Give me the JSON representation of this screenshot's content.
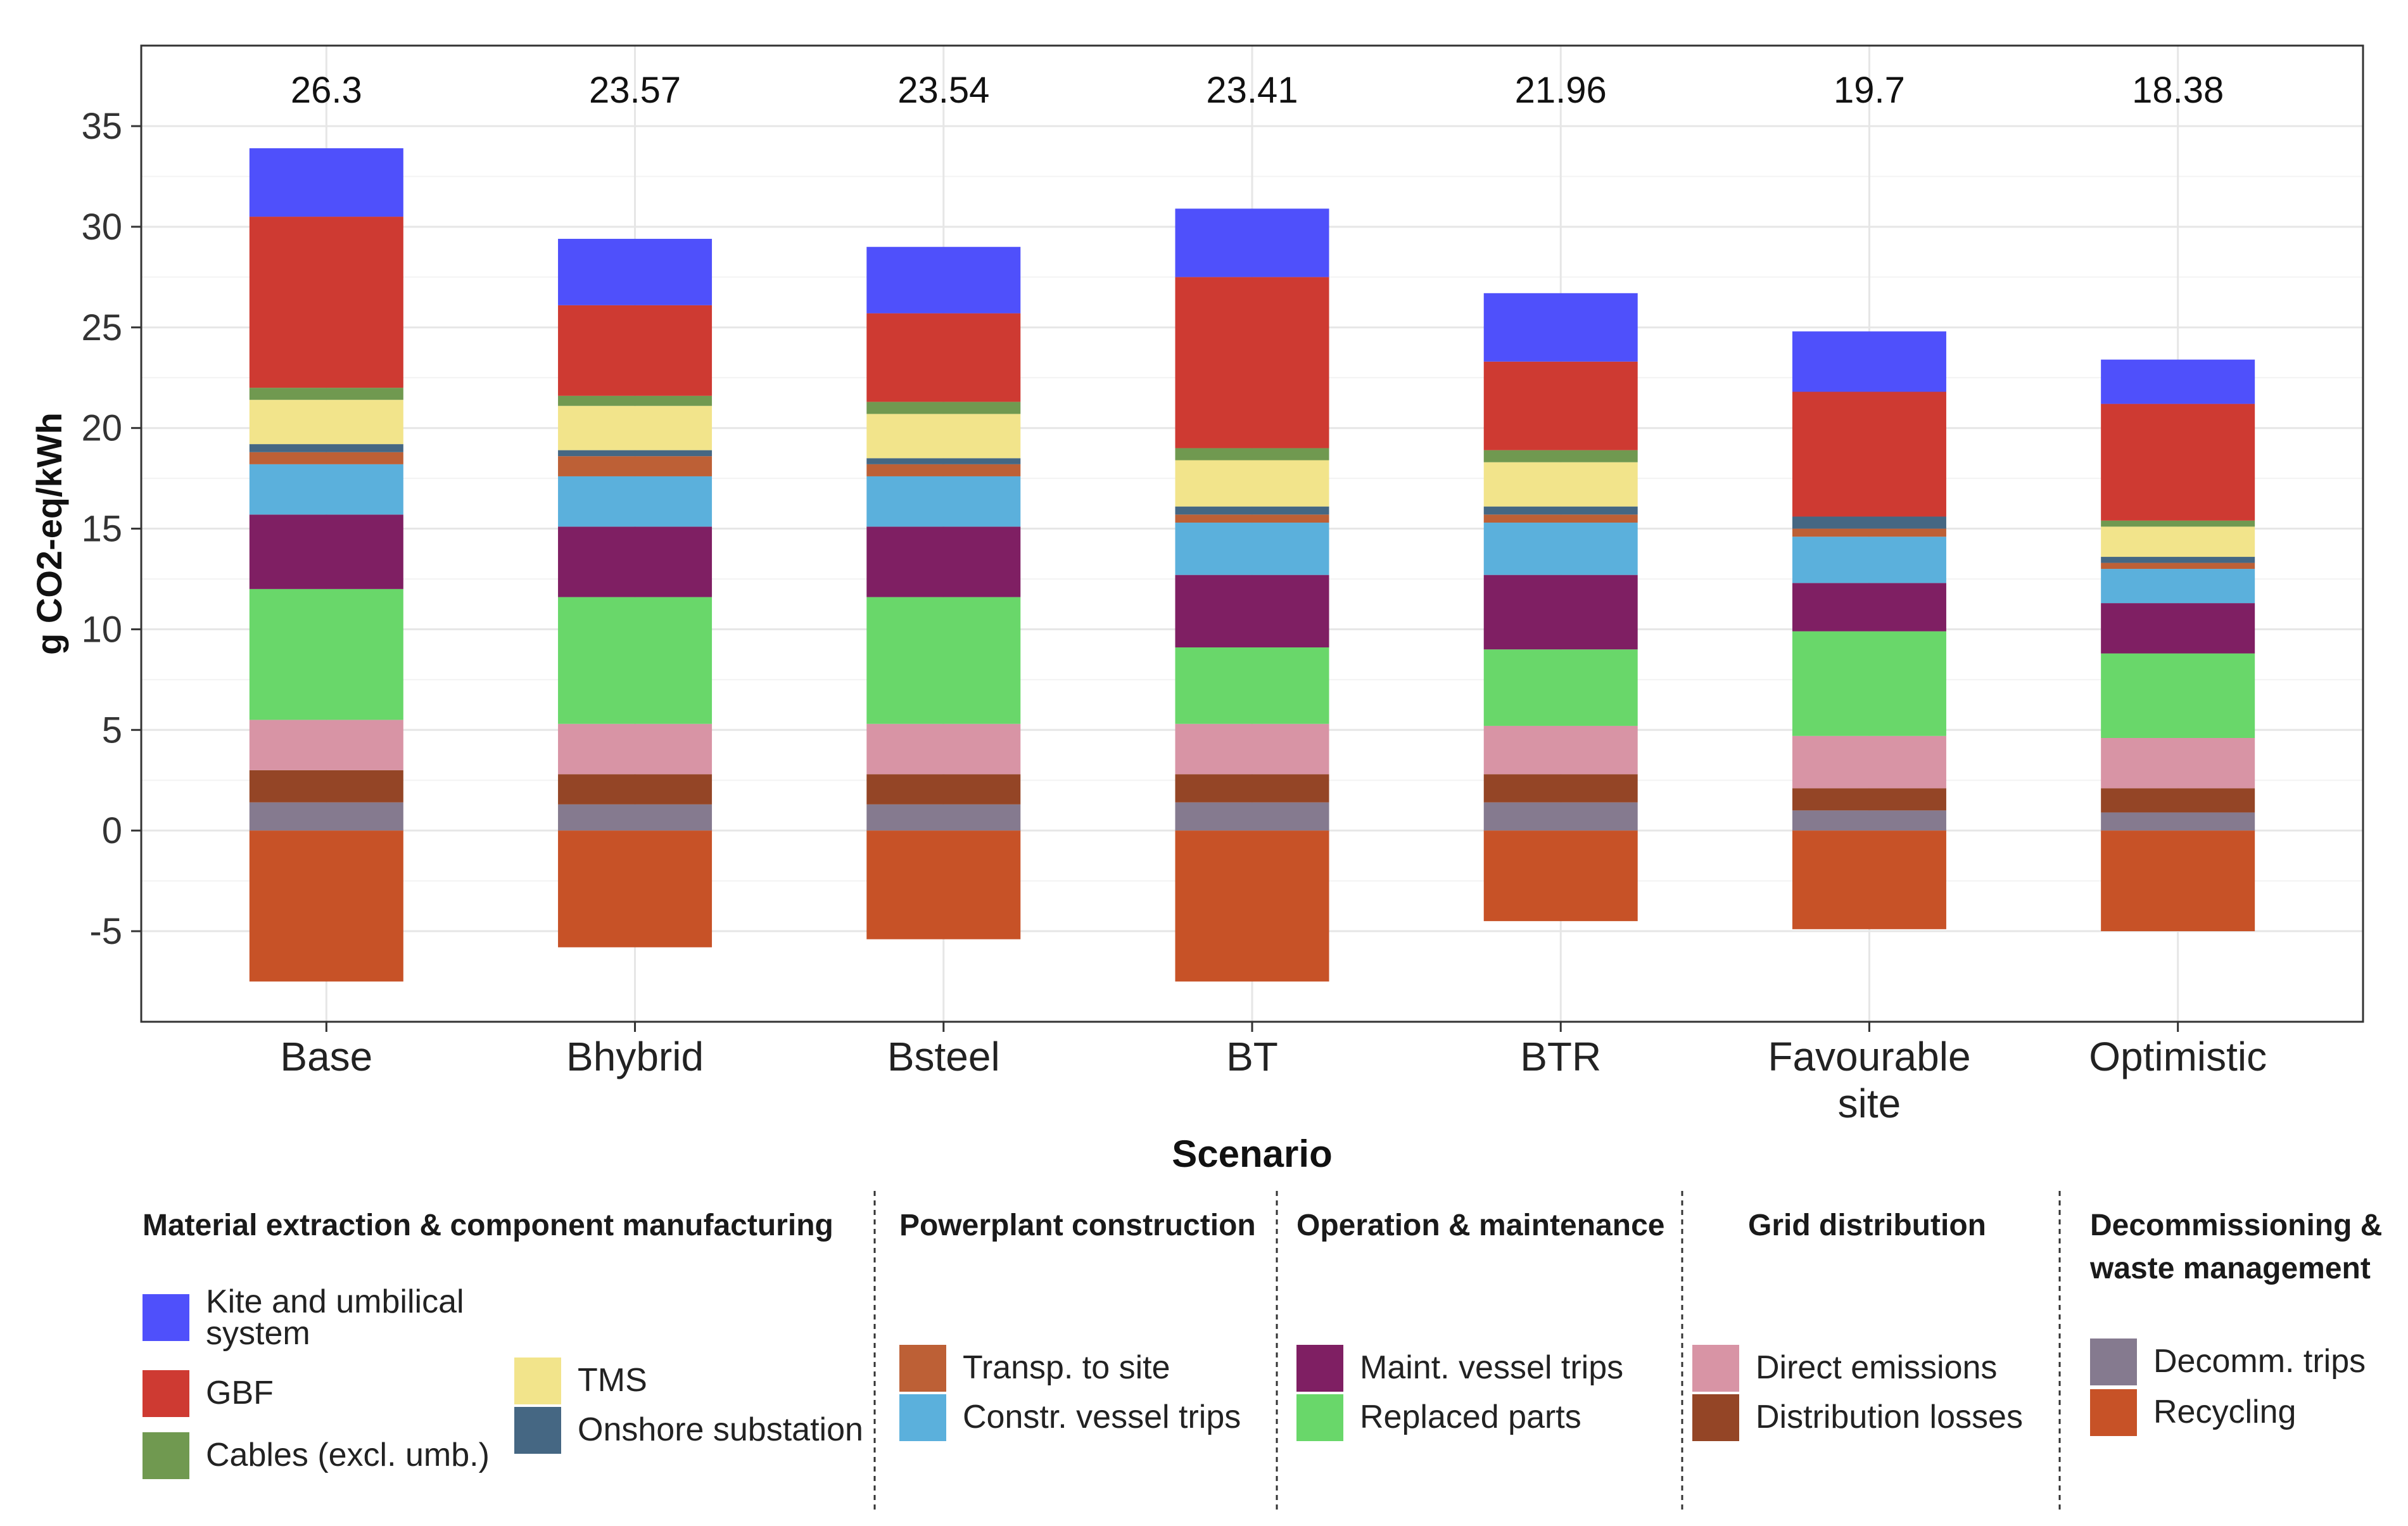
{
  "chart_data": {
    "type": "bar",
    "stacked": true,
    "title": "",
    "xlabel": "Scenario",
    "ylabel": "g CO2-eq/kWh",
    "ylim": [
      -9.5,
      39
    ],
    "yticks": [
      35,
      30,
      25,
      20,
      15,
      10,
      5,
      0,
      -5
    ],
    "ytick_labels": [
      "35",
      "30",
      "25",
      "20",
      "15",
      "10",
      "5",
      "0",
      "-5"
    ],
    "grid": true,
    "categories": [
      {
        "lines": [
          "Base"
        ]
      },
      {
        "lines": [
          "Bhybrid"
        ]
      },
      {
        "lines": [
          "Bsteel"
        ]
      },
      {
        "lines": [
          "BT"
        ]
      },
      {
        "lines": [
          "BTR"
        ]
      },
      {
        "lines": [
          "Favourable",
          "site"
        ]
      },
      {
        "lines": [
          "Optimistic"
        ]
      }
    ],
    "totals": [
      "26.3",
      "23.57",
      "23.54",
      "23.41",
      "21.96",
      "19.7",
      "18.38"
    ],
    "positive_series": [
      {
        "name": "Decomm. trips",
        "color": "#857A8F",
        "values": [
          1.4,
          1.3,
          1.3,
          1.4,
          1.4,
          1.0,
          0.9
        ]
      },
      {
        "name": "Distribution losses",
        "color": "#944526",
        "values": [
          1.6,
          1.5,
          1.5,
          1.4,
          1.4,
          1.1,
          1.2
        ]
      },
      {
        "name": "Direct emissions",
        "color": "#D894A5",
        "values": [
          2.5,
          2.5,
          2.5,
          2.5,
          2.4,
          2.6,
          2.5
        ]
      },
      {
        "name": "Replaced parts",
        "color": "#69D76A",
        "values": [
          6.5,
          6.3,
          6.3,
          3.8,
          3.8,
          5.2,
          4.2
        ]
      },
      {
        "name": "Maint. vessel trips",
        "color": "#7F1F63",
        "values": [
          3.7,
          3.5,
          3.5,
          3.6,
          3.7,
          2.4,
          2.5
        ]
      },
      {
        "name": "Constr. vessel trips",
        "color": "#5BB0DC",
        "values": [
          2.5,
          2.5,
          2.5,
          2.6,
          2.6,
          2.3,
          1.7
        ]
      },
      {
        "name": "Transp. to site",
        "color": "#BD6036",
        "values": [
          0.6,
          1.0,
          0.6,
          0.4,
          0.4,
          0.4,
          0.3
        ]
      },
      {
        "name": "Onshore substation",
        "color": "#456783",
        "values": [
          0.4,
          0.3,
          0.3,
          0.4,
          0.4,
          0.6,
          0.3
        ]
      },
      {
        "name": "TMS",
        "color": "#F2E48B",
        "values": [
          2.2,
          2.2,
          2.2,
          2.3,
          2.2,
          0.0,
          1.5
        ]
      },
      {
        "name": "Cables (excl. umb.)",
        "color": "#709950",
        "values": [
          0.6,
          0.5,
          0.6,
          0.6,
          0.6,
          0.0,
          0.3
        ]
      },
      {
        "name": "GBF",
        "color": "#CE3A32",
        "values": [
          8.5,
          4.5,
          4.4,
          8.5,
          4.4,
          6.2,
          5.8
        ]
      },
      {
        "name": "Kite and umbilical system",
        "color": "#4F50FB",
        "values": [
          3.4,
          3.3,
          3.3,
          3.4,
          3.4,
          3.0,
          2.2
        ]
      }
    ],
    "negative_series": [
      {
        "name": "Recycling",
        "color": "#C75227",
        "values": [
          -7.5,
          -5.8,
          -5.4,
          -7.5,
          -4.5,
          -4.9,
          -5.0
        ]
      }
    ]
  },
  "legend": {
    "groups": [
      {
        "title_lines": [
          "Material extraction & component manufacturing"
        ],
        "columns": [
          [
            {
              "label_lines": [
                "Kite and umbilical",
                "system"
              ],
              "color": "#4F50FB"
            },
            {
              "label_lines": [
                "GBF"
              ],
              "color": "#CE3A32"
            },
            {
              "label_lines": [
                "Cables (excl. umb.)"
              ],
              "color": "#709950"
            }
          ],
          [
            {
              "label_lines": [
                "TMS"
              ],
              "color": "#F2E48B"
            },
            {
              "label_lines": [
                "Onshore substation"
              ],
              "color": "#456783"
            }
          ]
        ]
      },
      {
        "title_lines": [
          "Powerplant construction"
        ],
        "columns": [
          [
            {
              "label_lines": [
                "Transp. to site"
              ],
              "color": "#BD6036"
            },
            {
              "label_lines": [
                "Constr. vessel trips"
              ],
              "color": "#5BB0DC"
            }
          ]
        ]
      },
      {
        "title_lines": [
          "Operation & maintenance"
        ],
        "columns": [
          [
            {
              "label_lines": [
                "Maint. vessel trips"
              ],
              "color": "#7F1F63"
            },
            {
              "label_lines": [
                "Replaced parts"
              ],
              "color": "#69D76A"
            }
          ]
        ]
      },
      {
        "title_lines": [
          "Grid distribution"
        ],
        "columns": [
          [
            {
              "label_lines": [
                "Direct emissions"
              ],
              "color": "#D894A5"
            },
            {
              "label_lines": [
                "Distribution losses"
              ],
              "color": "#944526"
            }
          ]
        ]
      },
      {
        "title_lines": [
          "Decommissioning &",
          "waste management"
        ],
        "columns": [
          [
            {
              "label_lines": [
                "Decomm. trips"
              ],
              "color": "#857A8F"
            },
            {
              "label_lines": [
                "Recycling"
              ],
              "color": "#C75227"
            }
          ]
        ]
      }
    ]
  },
  "colors": {
    "panel_border": "#333333",
    "grid_major": "#E6E6E6",
    "grid_minor": "#F3F3F3",
    "text": "#111111",
    "separator": "#333333"
  }
}
